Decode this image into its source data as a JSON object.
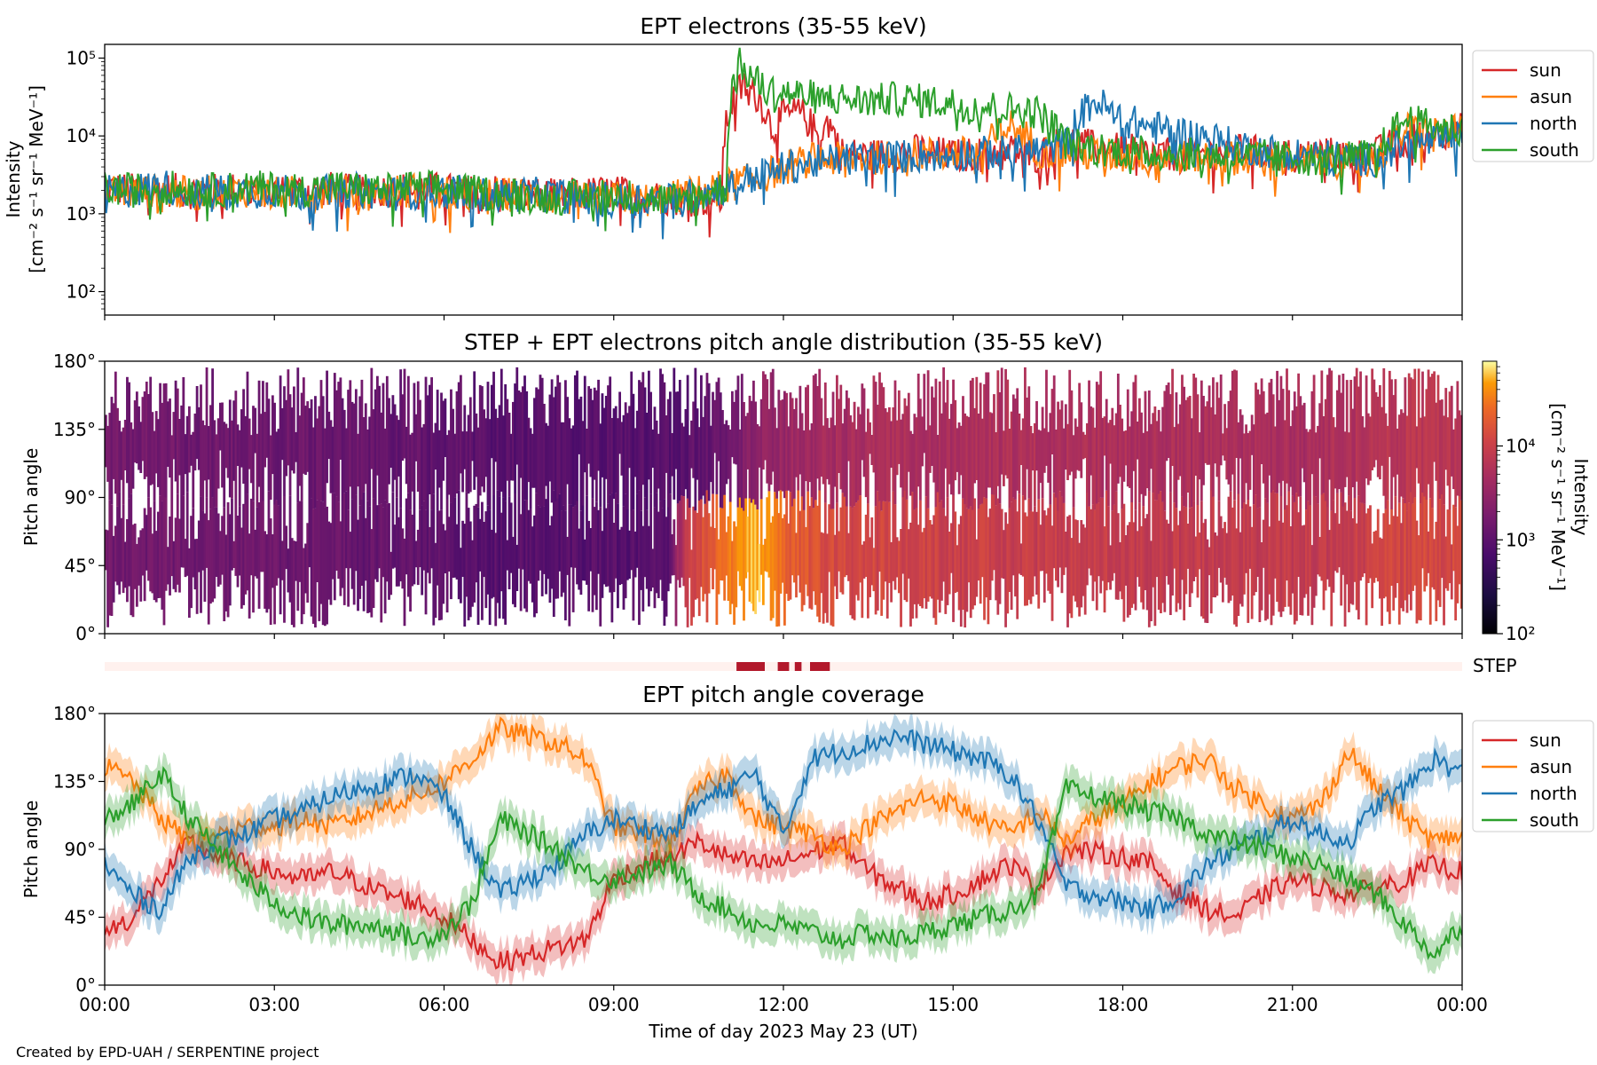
{
  "figure": {
    "credit": "Created by EPD-UAH / SERPENTINE project",
    "xlabel": "Time of day 2023 May 23 (UT)",
    "time_ticks": [
      "00:00",
      "03:00",
      "06:00",
      "09:00",
      "12:00",
      "15:00",
      "18:00",
      "21:00",
      "00:00"
    ]
  },
  "colors": {
    "sun": "#d62728",
    "asun": "#ff7f0e",
    "north": "#1f77b4",
    "south": "#2ca02c",
    "step": "#b2182b",
    "step_bg": "#fff1ee"
  },
  "chart_data": [
    {
      "id": "intensity",
      "type": "line",
      "title": "EPT electrons (35-55 keV)",
      "ylabel_line1": "Intensity",
      "ylabel_line2": "[cm⁻² s⁻¹ sr⁻¹ MeV⁻¹]",
      "yscale": "log",
      "ylim": [
        50,
        150000
      ],
      "yticks": [
        {
          "value": 100,
          "label": "10²"
        },
        {
          "value": 1000,
          "label": "10³"
        },
        {
          "value": 10000,
          "label": "10⁴"
        },
        {
          "value": 100000,
          "label": "10⁵"
        }
      ],
      "xlim_hours": [
        0,
        24
      ],
      "legend_position": "outside-right",
      "series": [
        {
          "name": "sun",
          "x_hours": [
            0,
            0.5,
            1,
            1.5,
            2,
            2.5,
            3,
            3.5,
            4,
            4.5,
            5,
            5.5,
            6,
            6.5,
            7,
            7.5,
            8,
            8.5,
            9,
            9.5,
            10,
            10.5,
            10.9,
            11.1,
            11.3,
            11.5,
            11.8,
            12,
            12.3,
            12.6,
            12.8,
            13,
            13.5,
            14,
            14.5,
            15,
            15.5,
            16,
            16.5,
            17,
            17.5,
            18,
            18.5,
            19,
            19.5,
            20,
            20.5,
            21,
            21.5,
            22,
            22.5,
            23,
            23.5,
            24
          ],
          "values": [
            2200,
            2000,
            2100,
            1900,
            2000,
            2100,
            1900,
            2000,
            2100,
            1900,
            2000,
            2200,
            2000,
            1900,
            2000,
            1800,
            1700,
            1800,
            1900,
            1700,
            1600,
            1500,
            1600,
            28000,
            45000,
            35000,
            12000,
            18000,
            20000,
            10000,
            15000,
            6000,
            5500,
            6000,
            6500,
            5500,
            6000,
            6500,
            5500,
            9000,
            7000,
            6500,
            6000,
            5500,
            6000,
            6500,
            6000,
            5500,
            6000,
            5500,
            6000,
            9000,
            11000,
            12000
          ]
        },
        {
          "name": "asun",
          "x_hours": [
            0,
            0.5,
            1,
            1.5,
            2,
            2.5,
            3,
            3.5,
            4,
            4.5,
            5,
            5.5,
            6,
            6.5,
            7,
            7.5,
            8,
            8.5,
            9,
            9.5,
            10,
            10.5,
            11,
            11.5,
            12,
            12.5,
            13,
            13.5,
            14,
            14.5,
            15,
            15.5,
            16,
            16.5,
            17,
            17.5,
            18,
            18.5,
            19,
            19.5,
            20,
            20.5,
            21,
            21.5,
            22,
            22.5,
            23,
            23.5,
            24
          ],
          "values": [
            2000,
            1900,
            2000,
            1800,
            1900,
            2000,
            1800,
            1900,
            2000,
            1800,
            1900,
            2000,
            1800,
            1700,
            1800,
            1700,
            1600,
            1500,
            1600,
            1500,
            1600,
            1900,
            2300,
            2800,
            3800,
            5000,
            5000,
            5200,
            5400,
            5800,
            6000,
            5800,
            14000,
            6500,
            6000,
            5800,
            5500,
            5600,
            5400,
            5500,
            5200,
            5000,
            4900,
            4800,
            4700,
            4600,
            12000,
            11000,
            11000
          ]
        },
        {
          "name": "north",
          "x_hours": [
            0,
            0.5,
            1,
            1.5,
            2,
            2.5,
            3,
            3.5,
            4,
            4.5,
            5,
            5.5,
            6,
            6.5,
            7,
            7.5,
            8,
            8.5,
            9,
            9.5,
            10,
            10.5,
            11,
            11.5,
            12,
            12.5,
            13,
            13.5,
            14,
            14.5,
            15,
            15.5,
            16,
            16.5,
            17,
            17.5,
            18,
            18.5,
            19,
            19.5,
            20,
            20.5,
            21,
            21.5,
            22,
            22.5,
            23,
            23.5,
            24
          ],
          "values": [
            1900,
            2000,
            2300,
            1900,
            2000,
            1900,
            2000,
            1800,
            1900,
            2000,
            1800,
            1900,
            2000,
            1800,
            1700,
            1800,
            1700,
            1600,
            1500,
            1600,
            1500,
            1800,
            2200,
            3000,
            3800,
            4500,
            5000,
            5200,
            5400,
            5600,
            5800,
            6000,
            6200,
            6500,
            8000,
            28000,
            16000,
            13000,
            11000,
            9500,
            7500,
            6500,
            6000,
            5500,
            5200,
            5000,
            8000,
            8500,
            9500
          ]
        },
        {
          "name": "south",
          "x_hours": [
            0,
            0.5,
            1,
            1.5,
            2,
            2.5,
            3,
            3.5,
            4,
            4.5,
            5,
            5.5,
            6,
            6.5,
            7,
            7.5,
            8,
            8.5,
            9,
            9.5,
            10,
            10.5,
            11,
            11.2,
            11.4,
            11.7,
            12,
            12.5,
            13,
            13.5,
            14,
            14.5,
            15,
            15.5,
            16,
            16.5,
            17,
            17.5,
            18,
            18.5,
            19,
            19.5,
            20,
            20.5,
            21,
            21.5,
            22,
            22.5,
            23,
            23.5,
            24
          ],
          "values": [
            2100,
            2000,
            2200,
            2100,
            2000,
            2200,
            2100,
            2000,
            2200,
            2100,
            2000,
            2200,
            2100,
            1900,
            1800,
            1700,
            1600,
            1700,
            1800,
            1600,
            1500,
            1700,
            2200,
            85000,
            60000,
            38000,
            36000,
            32000,
            30000,
            28000,
            30000,
            28000,
            26000,
            24000,
            22000,
            20000,
            8000,
            7000,
            6500,
            6000,
            5800,
            5600,
            5500,
            5400,
            5200,
            5000,
            5200,
            5500,
            16000,
            13000,
            12000
          ]
        }
      ]
    },
    {
      "id": "pitch-distribution",
      "type": "heatmap",
      "title": "STEP + EPT electrons pitch angle distribution (35-55 keV)",
      "ylabel": "Pitch angle",
      "ylim": [
        0,
        180
      ],
      "yticks": [
        {
          "value": 0,
          "label": "0°"
        },
        {
          "value": 45,
          "label": "45°"
        },
        {
          "value": 90,
          "label": "90°"
        },
        {
          "value": 135,
          "label": "135°"
        },
        {
          "value": 180,
          "label": "180°"
        }
      ],
      "xlim_hours": [
        0,
        24
      ],
      "colorbar": {
        "label_line1": "Intensity",
        "label_line2": "[cm⁻² s⁻¹ sr⁻¹ MeV⁻¹]",
        "scale": "log",
        "range": [
          100,
          80000
        ],
        "colormap": "inferno",
        "ticks": [
          {
            "value": 100,
            "label": "10²"
          },
          {
            "value": 1000,
            "label": "10³"
          },
          {
            "value": 10000,
            "label": "10⁴"
          }
        ]
      },
      "intensity_by_hour": {
        "hours": [
          0,
          1,
          2,
          3,
          4,
          5,
          6,
          7,
          8,
          9,
          10,
          11,
          11.5,
          12,
          13,
          14,
          15,
          16,
          17,
          18,
          19,
          20,
          21,
          22,
          23,
          24
        ],
        "upper_half": [
          1500,
          1500,
          1400,
          1400,
          1300,
          1200,
          1100,
          900,
          900,
          900,
          900,
          1300,
          2500,
          3500,
          4500,
          5000,
          5000,
          5500,
          5500,
          5500,
          5000,
          5000,
          5000,
          5500,
          7000,
          7000
        ],
        "lower_half": [
          1500,
          1500,
          1400,
          1400,
          1300,
          1200,
          1100,
          900,
          900,
          900,
          900,
          25000,
          60000,
          20000,
          12000,
          11000,
          10000,
          9500,
          9000,
          9000,
          8500,
          8500,
          8500,
          9000,
          12000,
          12000
        ]
      }
    },
    {
      "id": "step-coverage",
      "type": "bar",
      "label": "STEP",
      "intervals_hours": [
        [
          11.17,
          11.67
        ],
        [
          11.9,
          12.1
        ],
        [
          12.2,
          12.32
        ],
        [
          12.47,
          12.82
        ]
      ]
    },
    {
      "id": "pitch-coverage",
      "type": "line",
      "title": "EPT pitch angle coverage",
      "ylabel": "Pitch angle",
      "ylim": [
        0,
        180
      ],
      "yticks": [
        {
          "value": 0,
          "label": "0°"
        },
        {
          "value": 45,
          "label": "45°"
        },
        {
          "value": 90,
          "label": "90°"
        },
        {
          "value": 135,
          "label": "135°"
        },
        {
          "value": 180,
          "label": "180°"
        }
      ],
      "xlim_hours": [
        0,
        24
      ],
      "legend_position": "outside-right",
      "series": [
        {
          "name": "sun",
          "x_hours": [
            0,
            0.5,
            1,
            1.5,
            2,
            2.5,
            3,
            3.5,
            4,
            4.5,
            5,
            5.5,
            6,
            6.5,
            7,
            7.5,
            8,
            8.5,
            9,
            9.5,
            10,
            10.5,
            11,
            11.5,
            12,
            12.5,
            13,
            13.5,
            14,
            14.5,
            15,
            15.5,
            16,
            16.5,
            17,
            17.5,
            18,
            18.5,
            19,
            19.5,
            20,
            20.5,
            21,
            21.5,
            22,
            22.5,
            23,
            23.5,
            24
          ],
          "values": [
            35,
            45,
            70,
            95,
            85,
            80,
            75,
            70,
            75,
            68,
            60,
            55,
            45,
            30,
            15,
            20,
            25,
            30,
            70,
            80,
            85,
            95,
            85,
            80,
            82,
            88,
            95,
            75,
            65,
            55,
            60,
            70,
            80,
            65,
            90,
            88,
            85,
            80,
            60,
            50,
            45,
            60,
            70,
            65,
            60,
            65,
            70,
            80,
            75
          ]
        },
        {
          "name": "asun",
          "x_hours": [
            0,
            0.5,
            1,
            1.5,
            2,
            2.5,
            3,
            3.5,
            4,
            4.5,
            5,
            5.5,
            6,
            6.5,
            7,
            7.5,
            8,
            8.5,
            9,
            9.5,
            10,
            10.5,
            11,
            11.5,
            12,
            12.5,
            13,
            13.5,
            14,
            14.5,
            15,
            15.5,
            16,
            16.5,
            17,
            17.5,
            18,
            18.5,
            19,
            19.5,
            20,
            20.5,
            21,
            21.5,
            22,
            22.5,
            23,
            23.5,
            24
          ],
          "values": [
            145,
            135,
            110,
            95,
            100,
            105,
            105,
            110,
            105,
            112,
            120,
            125,
            135,
            150,
            170,
            165,
            160,
            150,
            105,
            100,
            95,
            130,
            140,
            110,
            105,
            100,
            90,
            105,
            115,
            125,
            120,
            110,
            100,
            115,
            95,
            110,
            120,
            135,
            145,
            150,
            130,
            120,
            110,
            120,
            155,
            130,
            110,
            95,
            100
          ]
        },
        {
          "name": "north",
          "x_hours": [
            0,
            0.5,
            1,
            1.5,
            2,
            2.5,
            3,
            3.5,
            4,
            4.5,
            5,
            5.5,
            6,
            6.5,
            7,
            7.5,
            8,
            8.5,
            9,
            9.5,
            10,
            10.5,
            11,
            11.5,
            12,
            12.5,
            13,
            13.5,
            14,
            14.5,
            15,
            15.5,
            16,
            16.5,
            17,
            17.5,
            18,
            18.5,
            19,
            19.5,
            20,
            20.5,
            21,
            21.5,
            22,
            22.5,
            23,
            23.5,
            24
          ],
          "values": [
            80,
            60,
            50,
            85,
            95,
            100,
            110,
            115,
            125,
            130,
            135,
            140,
            125,
            90,
            60,
            70,
            80,
            100,
            110,
            105,
            100,
            120,
            130,
            140,
            100,
            150,
            155,
            160,
            165,
            160,
            155,
            150,
            140,
            110,
            65,
            60,
            55,
            50,
            60,
            80,
            90,
            100,
            110,
            100,
            95,
            120,
            130,
            150,
            140
          ]
        },
        {
          "name": "south",
          "x_hours": [
            0,
            0.5,
            1,
            1.5,
            2,
            2.5,
            3,
            3.5,
            4,
            4.5,
            5,
            5.5,
            6,
            6.5,
            7,
            7.5,
            8,
            8.5,
            9,
            9.5,
            10,
            10.5,
            11,
            11.5,
            12,
            12.5,
            13,
            13.5,
            14,
            14.5,
            15,
            15.5,
            16,
            16.5,
            17,
            17.5,
            18,
            18.5,
            19,
            19.5,
            20,
            20.5,
            21,
            21.5,
            22,
            22.5,
            23,
            23.5,
            24
          ],
          "values": [
            110,
            120,
            140,
            110,
            90,
            70,
            55,
            45,
            40,
            40,
            38,
            30,
            35,
            55,
            110,
            100,
            90,
            75,
            70,
            75,
            80,
            60,
            50,
            40,
            40,
            35,
            30,
            35,
            30,
            35,
            40,
            45,
            50,
            60,
            130,
            125,
            120,
            115,
            110,
            100,
            95,
            90,
            85,
            80,
            70,
            60,
            40,
            20,
            40
          ]
        }
      ]
    }
  ]
}
